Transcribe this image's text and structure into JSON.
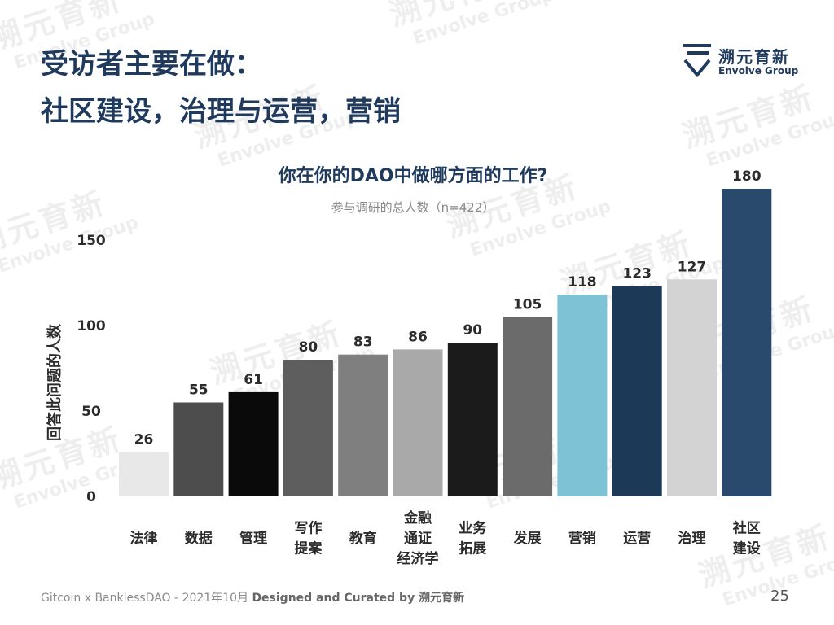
{
  "slide": {
    "title_line1": "受访者主要在做：",
    "title_line2": "社区建设，治理与运营，营销"
  },
  "logo": {
    "name_zh": "溯元育新",
    "name_en": "Envolve Group"
  },
  "watermark": {
    "text_zh": "溯元育新",
    "text_en": "Envolve Group"
  },
  "footer": {
    "prefix": "Gitcoin x BanklessDAO - 2021年10月 ",
    "bold": "Designed and Curated by 溯元育新",
    "page_number": "25"
  },
  "chart_data": {
    "type": "bar",
    "title": "你在你的DAO中做哪方面的工作?",
    "subtitle": "参与调研的总人数（n=422）",
    "ylabel": "回答此问题的人数",
    "xlabel": "",
    "ylim": [
      0,
      180
    ],
    "yticks": [
      0,
      50,
      100,
      150
    ],
    "grid": false,
    "categories": [
      [
        "法律"
      ],
      [
        "数据"
      ],
      [
        "管理"
      ],
      [
        "写作",
        "提案"
      ],
      [
        "教育"
      ],
      [
        "金融",
        "通证",
        "经济学"
      ],
      [
        "业务",
        "拓展"
      ],
      [
        "发展"
      ],
      [
        "营销"
      ],
      [
        "运营"
      ],
      [
        "治理"
      ],
      [
        "社区",
        "建设"
      ]
    ],
    "values": [
      26,
      55,
      61,
      80,
      83,
      86,
      90,
      105,
      118,
      123,
      127,
      180
    ],
    "colors": [
      "#e8e8e8",
      "#4d4d4d",
      "#0a0a0a",
      "#5e5e5e",
      "#7f7f7f",
      "#a9a9a9",
      "#1b1b1b",
      "#6b6b6b",
      "#7ec2d6",
      "#1c3a57",
      "#d3d3d3",
      "#2a4a6d"
    ],
    "title_color": "#1f3a5c"
  }
}
